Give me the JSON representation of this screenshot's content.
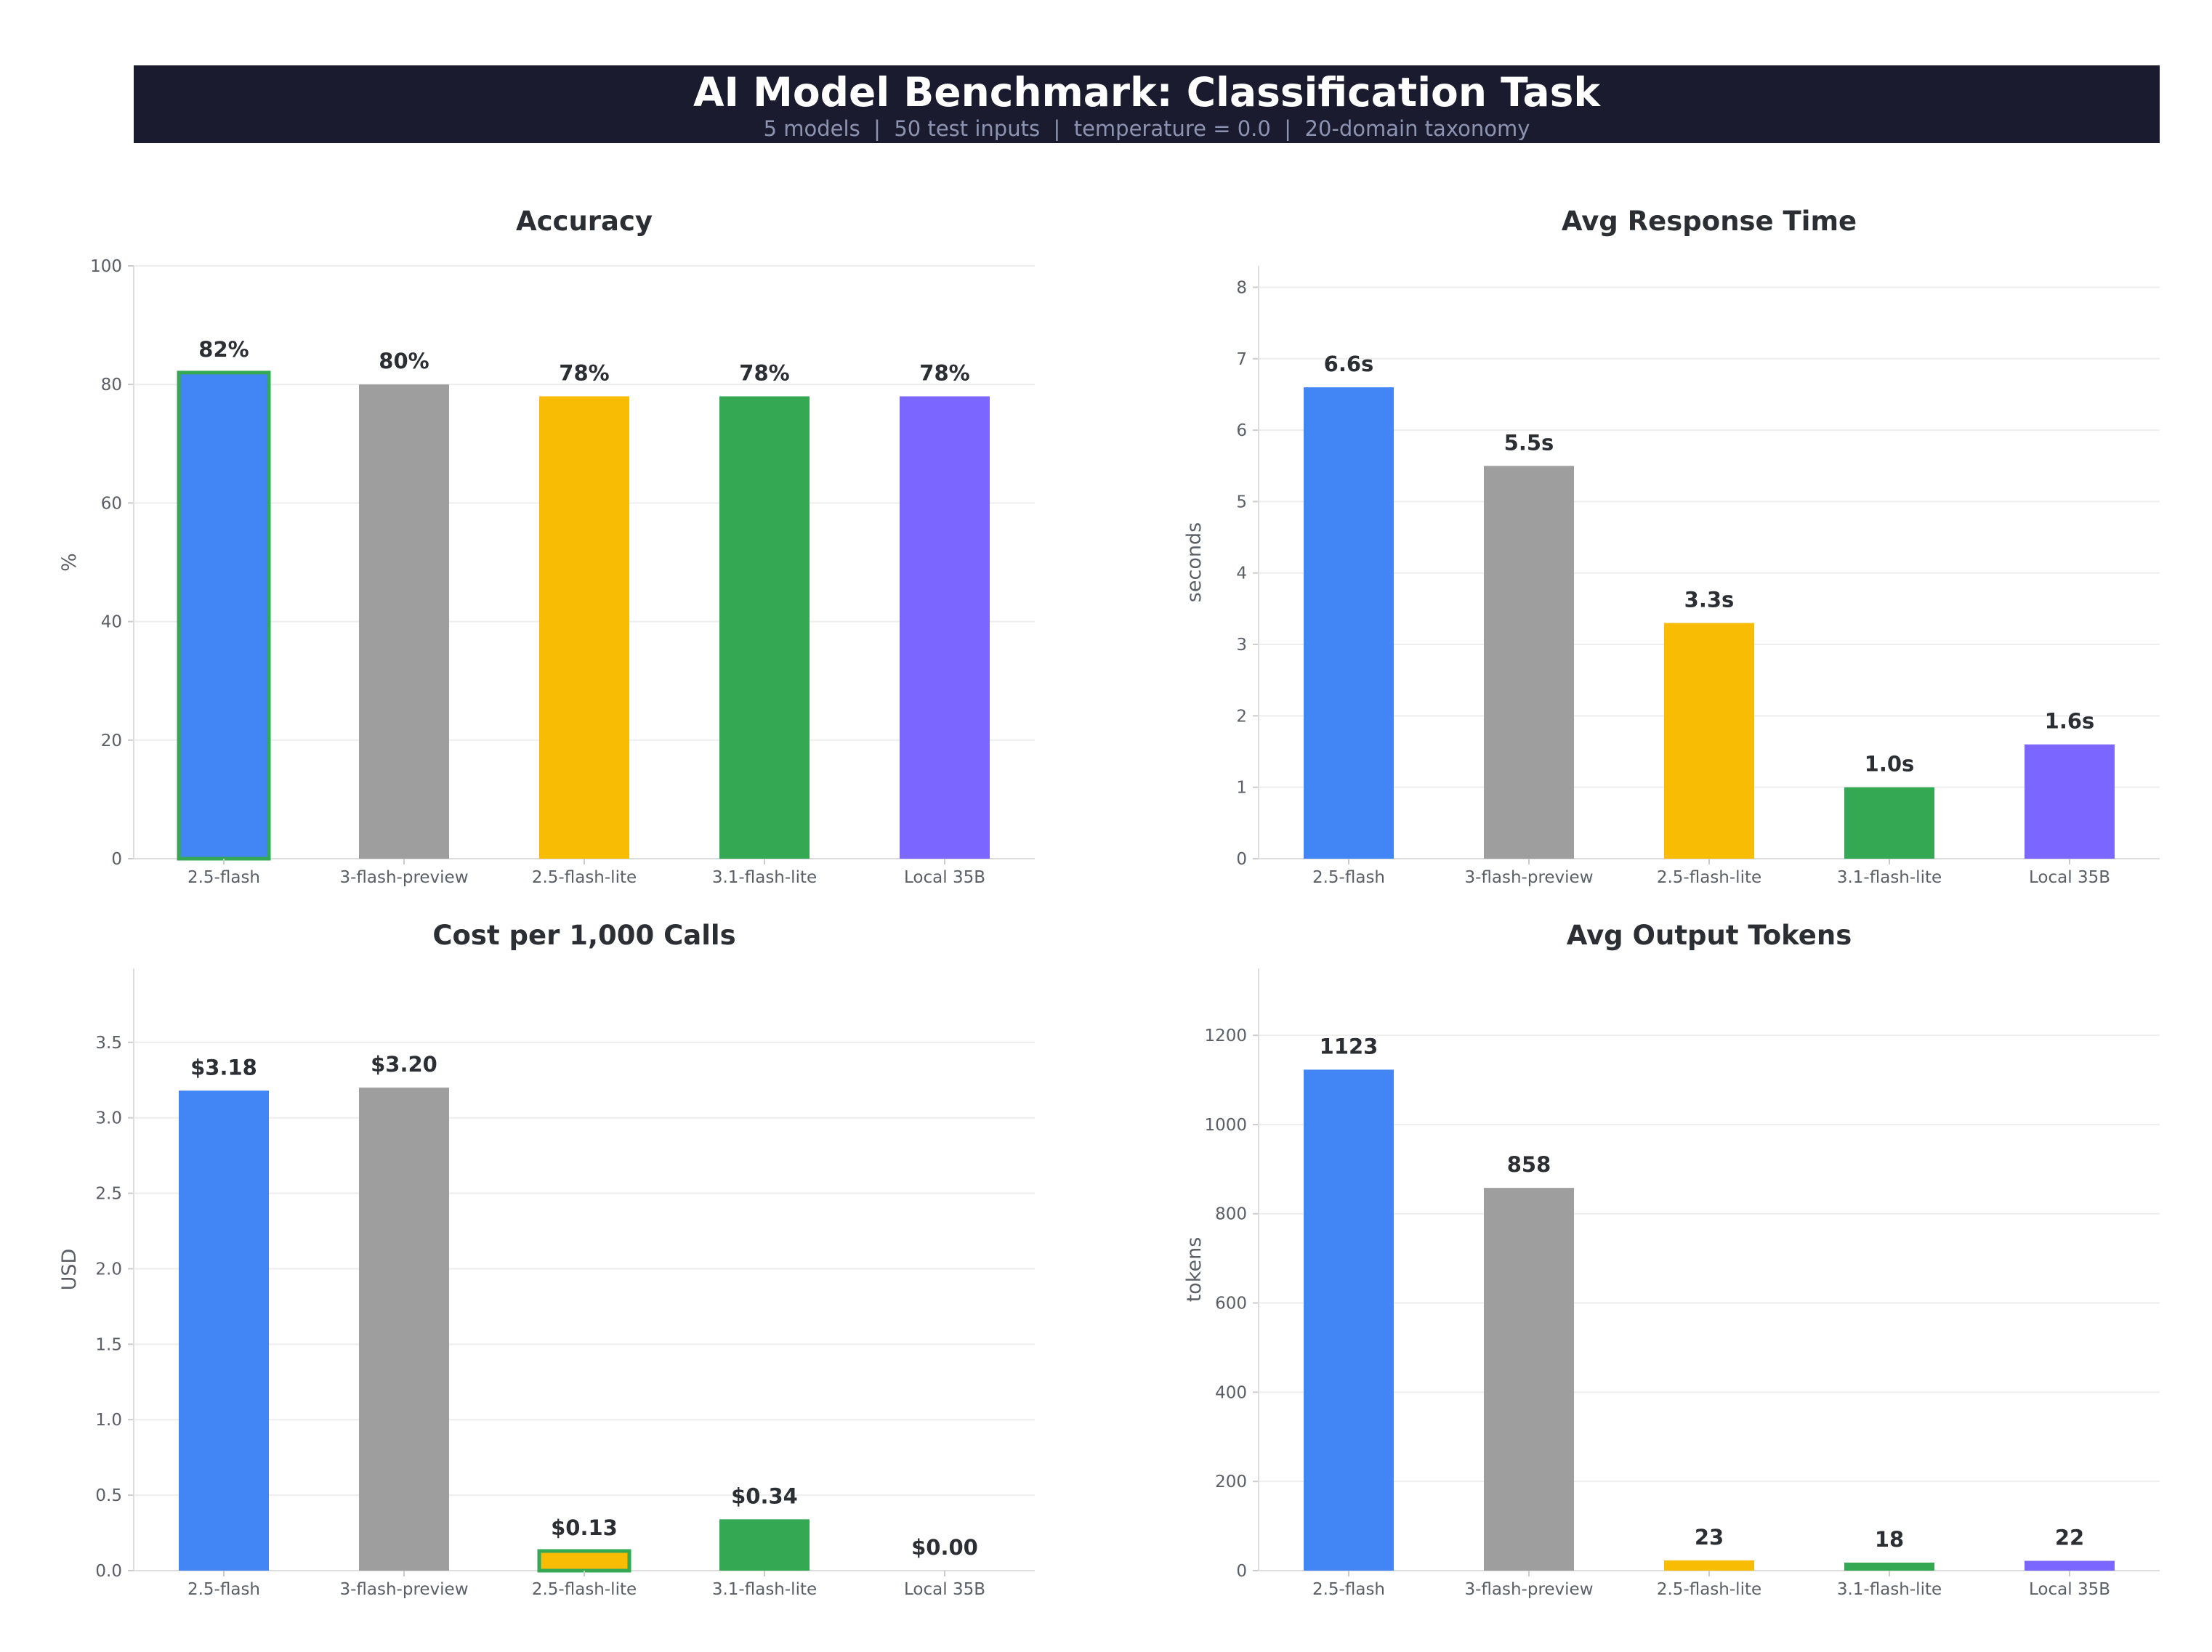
{
  "header": {
    "title": "AI Model Benchmark: Classification Task",
    "subtitle": "5 models  |  50 test inputs  |  temperature = 0.0  |  20-domain taxonomy"
  },
  "colors": {
    "header_bg": "#1b1b2f",
    "highlight_border": "#34a853"
  },
  "chart_data": [
    {
      "type": "bar",
      "title": "Accuracy",
      "ylabel": "%",
      "categories": [
        "2.5-flash",
        "3-flash-preview",
        "2.5-flash-lite",
        "3.1-flash-lite",
        "Local 35B"
      ],
      "colors": [
        "#4285f4",
        "#9e9e9e",
        "#f9bc05",
        "#34a853",
        "#7b66ff"
      ],
      "values": [
        82,
        80,
        78,
        78,
        78
      ],
      "value_labels": [
        "82%",
        "80%",
        "78%",
        "78%",
        "78%"
      ],
      "highlight_index": 0,
      "ylim": [
        0,
        100
      ],
      "yticks": [
        0,
        20,
        40,
        60,
        80,
        100
      ],
      "ytick_labels": [
        "0",
        "20",
        "40",
        "60",
        "80",
        "100"
      ],
      "grid": true
    },
    {
      "type": "bar",
      "title": "Avg Response Time",
      "ylabel": "seconds",
      "categories": [
        "2.5-flash",
        "3-flash-preview",
        "2.5-flash-lite",
        "3.1-flash-lite",
        "Local 35B"
      ],
      "colors": [
        "#4285f4",
        "#9e9e9e",
        "#f9bc05",
        "#34a853",
        "#7b66ff"
      ],
      "values": [
        6.6,
        5.5,
        3.3,
        1.0,
        1.6
      ],
      "value_labels": [
        "6.6s",
        "5.5s",
        "3.3s",
        "1.0s",
        "1.6s"
      ],
      "highlight_index": null,
      "ylim": [
        0,
        8.3
      ],
      "yticks": [
        0,
        1,
        2,
        3,
        4,
        5,
        6,
        7,
        8
      ],
      "ytick_labels": [
        "0",
        "1",
        "2",
        "3",
        "4",
        "5",
        "6",
        "7",
        "8"
      ],
      "grid": true
    },
    {
      "type": "bar",
      "title": "Cost per 1,000 Calls",
      "ylabel": "USD",
      "categories": [
        "2.5-flash",
        "3-flash-preview",
        "2.5-flash-lite",
        "3.1-flash-lite",
        "Local 35B"
      ],
      "colors": [
        "#4285f4",
        "#9e9e9e",
        "#f9bc05",
        "#34a853",
        "#7b66ff"
      ],
      "values": [
        3.18,
        3.2,
        0.13,
        0.34,
        0.0
      ],
      "value_labels": [
        "$3.18",
        "$3.20",
        "$0.13",
        "$0.34",
        "$0.00"
      ],
      "highlight_index": 2,
      "ylim": [
        0,
        3.99
      ],
      "yticks": [
        0,
        0.5,
        1.0,
        1.5,
        2.0,
        2.5,
        3.0,
        3.5
      ],
      "ytick_labels": [
        "0.0",
        "0.5",
        "1.0",
        "1.5",
        "2.0",
        "2.5",
        "3.0",
        "3.5"
      ],
      "grid": true
    },
    {
      "type": "bar",
      "title": "Avg Output Tokens",
      "ylabel": "tokens",
      "categories": [
        "2.5-flash",
        "3-flash-preview",
        "2.5-flash-lite",
        "3.1-flash-lite",
        "Local 35B"
      ],
      "colors": [
        "#4285f4",
        "#9e9e9e",
        "#f9bc05",
        "#34a853",
        "#7b66ff"
      ],
      "values": [
        1123,
        858,
        23,
        18,
        22
      ],
      "value_labels": [
        "1123",
        "858",
        "23",
        "18",
        "22"
      ],
      "highlight_index": null,
      "ylim": [
        0,
        1350
      ],
      "yticks": [
        0,
        200,
        400,
        600,
        800,
        1000,
        1200
      ],
      "ytick_labels": [
        "0",
        "200",
        "400",
        "600",
        "800",
        "1000",
        "1200"
      ],
      "grid": true
    }
  ]
}
